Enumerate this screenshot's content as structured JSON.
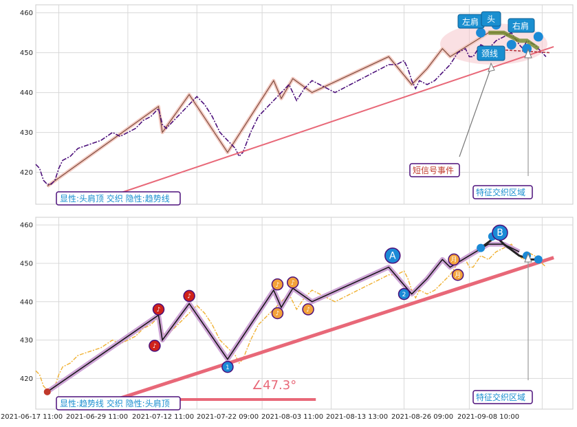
{
  "chart_data": [
    {
      "type": "line",
      "panel": "top",
      "ylim": [
        412,
        462
      ],
      "yticks": [
        420,
        430,
        440,
        450,
        460
      ],
      "grid": true,
      "price_series": [
        [
          0,
          422
        ],
        [
          1,
          421
        ],
        [
          2,
          418
        ],
        [
          3,
          417
        ],
        [
          4,
          417
        ],
        [
          5,
          418
        ],
        [
          6,
          421
        ],
        [
          7,
          423
        ],
        [
          9,
          424
        ],
        [
          11,
          426
        ],
        [
          14,
          427
        ],
        [
          17,
          428
        ],
        [
          20,
          430
        ],
        [
          22,
          429
        ],
        [
          24,
          430
        ],
        [
          26,
          431
        ],
        [
          28,
          433
        ],
        [
          30,
          434
        ],
        [
          32,
          436
        ],
        [
          33,
          432
        ],
        [
          34,
          431
        ],
        [
          36,
          433
        ],
        [
          38,
          435
        ],
        [
          40,
          437
        ],
        [
          42,
          439
        ],
        [
          44,
          437
        ],
        [
          46,
          434
        ],
        [
          48,
          430
        ],
        [
          50,
          428
        ],
        [
          52,
          426
        ],
        [
          53,
          424
        ],
        [
          54,
          425
        ],
        [
          56,
          430
        ],
        [
          58,
          434
        ],
        [
          60,
          436
        ],
        [
          62,
          438
        ],
        [
          64,
          440
        ],
        [
          66,
          442
        ],
        [
          67,
          440
        ],
        [
          68,
          438
        ],
        [
          70,
          441
        ],
        [
          72,
          443
        ],
        [
          74,
          442
        ],
        [
          76,
          441
        ],
        [
          78,
          440
        ],
        [
          80,
          441
        ],
        [
          82,
          442
        ],
        [
          84,
          443
        ],
        [
          86,
          444
        ],
        [
          88,
          445
        ],
        [
          90,
          446
        ],
        [
          92,
          447
        ],
        [
          94,
          447
        ],
        [
          96,
          448
        ],
        [
          97,
          446
        ],
        [
          98,
          443
        ],
        [
          99,
          441
        ],
        [
          100,
          443
        ],
        [
          102,
          442
        ],
        [
          104,
          443
        ],
        [
          106,
          445
        ],
        [
          108,
          447
        ],
        [
          110,
          450
        ],
        [
          112,
          451
        ],
        [
          113,
          449
        ],
        [
          114,
          449
        ],
        [
          116,
          452
        ],
        [
          118,
          451
        ],
        [
          120,
          453
        ],
        [
          122,
          454
        ],
        [
          124,
          455
        ],
        [
          126,
          452
        ],
        [
          127,
          451
        ],
        [
          128,
          453
        ],
        [
          130,
          452
        ],
        [
          131,
          451
        ],
        [
          132,
          450
        ],
        [
          133,
          449
        ]
      ],
      "zigzag": [
        [
          3,
          416.5
        ],
        [
          32,
          436.5
        ],
        [
          33,
          430
        ],
        [
          40,
          439.5
        ],
        [
          50,
          425
        ],
        [
          62,
          443
        ],
        [
          64,
          438.5
        ],
        [
          67,
          443.5
        ],
        [
          72,
          440
        ],
        [
          92,
          449
        ],
        [
          98,
          442
        ],
        [
          102,
          446
        ],
        [
          106,
          451
        ],
        [
          108,
          449
        ],
        [
          118,
          455
        ],
        [
          122,
          455
        ],
        [
          126,
          453
        ]
      ],
      "trendline": [
        [
          21,
          414.5
        ],
        [
          135,
          451.5
        ]
      ],
      "annotations": {
        "explicit_label": "显性:头肩顶 交织 隐性:趋势线",
        "left_shoulder": "左肩",
        "head": "头",
        "right_shoulder": "右肩",
        "neckline": "颈线",
        "short_signal": "短信号事件",
        "feature_zone": "特征交织区域"
      }
    },
    {
      "type": "line",
      "panel": "bottom",
      "ylim": [
        412,
        462
      ],
      "yticks": [
        420,
        430,
        440,
        450,
        460
      ],
      "grid": true,
      "x_tick_labels": [
        "2021-06-17 11:00",
        "2021-06-29 11:00",
        "2021-07-12 11:00",
        "2021-07-22 09:00",
        "2021-08-03 11:00",
        "2021-08-13 13:00",
        "2021-08-26 09:00",
        "2021-09-08 10:00"
      ],
      "markers": [
        {
          "x": 32,
          "y": 438,
          "label": "♪"
        },
        {
          "x": 31,
          "y": 428.5,
          "label": "♪"
        },
        {
          "x": 40,
          "y": 441.5,
          "label": "♪"
        },
        {
          "x": 50,
          "y": 423,
          "label": "1"
        },
        {
          "x": 63,
          "y": 444.5,
          "label": "♪"
        },
        {
          "x": 63,
          "y": 437,
          "label": "♪"
        },
        {
          "x": 67,
          "y": 445,
          "label": "♪"
        },
        {
          "x": 71,
          "y": 438,
          "label": "♪"
        },
        {
          "x": 93,
          "y": 452,
          "label": "A"
        },
        {
          "x": 96,
          "y": 442,
          "label": "2"
        },
        {
          "x": 109,
          "y": 451,
          "label": "月"
        },
        {
          "x": 110,
          "y": 447,
          "label": "月"
        },
        {
          "x": 121,
          "y": 458,
          "label": "B"
        }
      ],
      "angle_label": "∠47.3°",
      "annotations": {
        "explicit_label": "显性:趋势线 交织 隐性:头肩顶",
        "feature_zone": "特征交织区域"
      }
    }
  ],
  "colors": {
    "top_price": "#4b0f7a",
    "bottom_price": "#f0b030",
    "zigzag_fill_top": "#f2c8c0",
    "zigzag_fill_bottom": "#c89ad0",
    "trendline": "#e86878",
    "box_border": "#4b0f7a",
    "box_text": "#1a8fd0",
    "signal_text": "#c0392b",
    "marker_red": "#d0221a",
    "marker_orange": "#f3a23a",
    "marker_blue": "#1b8ad6"
  }
}
